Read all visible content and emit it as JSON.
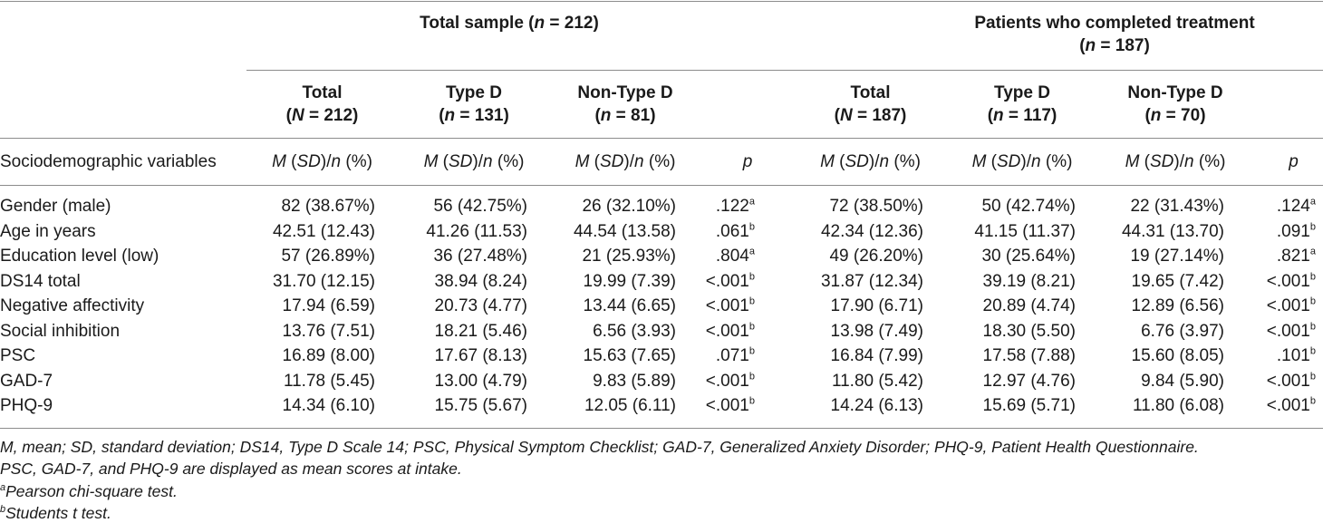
{
  "groups": [
    {
      "title": "Total sample (",
      "n_label": "n",
      "n_value": " = 212)"
    },
    {
      "title": "Patients who completed treatment",
      "n_label": "n",
      "n_value": " = 187)"
    }
  ],
  "columns": [
    {
      "name": "Total",
      "nvar": "N",
      "nval": " = 212)"
    },
    {
      "name": "Type D",
      "nvar": "n",
      "nval": " = 131)"
    },
    {
      "name": "Non-Type D",
      "nvar": "n",
      "nval": " = 81)"
    },
    {
      "name": "Total",
      "nvar": "N",
      "nval": " = 187)"
    },
    {
      "name": "Type D",
      "nvar": "n",
      "nval": " = 117)"
    },
    {
      "name": "Non-Type D",
      "nvar": "n",
      "nval": " = 70)"
    }
  ],
  "subheader": {
    "label": "Sociodemographic variables",
    "stat_m": "M",
    "stat_sd": "SD",
    "stat_n": "n",
    "p": "p"
  },
  "rows": [
    {
      "label": "Gender (male)",
      "v": [
        "82 (38.67%)",
        "56 (42.75%)",
        "26 (32.10%)",
        ".122",
        "72 (38.50%)",
        "50 (42.74%)",
        "22 (31.43%)",
        ".124"
      ],
      "sup": [
        "a",
        "a"
      ]
    },
    {
      "label": "Age in years",
      "v": [
        "42.51 (12.43)",
        "41.26 (11.53)",
        "44.54 (13.58)",
        ".061",
        "42.34 (12.36)",
        "41.15 (11.37)",
        "44.31 (13.70)",
        ".091"
      ],
      "sup": [
        "b",
        "b"
      ]
    },
    {
      "label": "Education level (low)",
      "v": [
        "57 (26.89%)",
        "36 (27.48%)",
        "21 (25.93%)",
        ".804",
        "49 (26.20%)",
        "30 (25.64%)",
        "19 (27.14%)",
        ".821"
      ],
      "sup": [
        "a",
        "a"
      ]
    },
    {
      "label": "DS14 total",
      "v": [
        "31.70 (12.15)",
        "38.94 (8.24)",
        "19.99 (7.39)",
        "<.001",
        "31.87 (12.34)",
        "39.19 (8.21)",
        "19.65 (7.42)",
        "<.001"
      ],
      "sup": [
        "b",
        "b"
      ]
    },
    {
      "label": "Negative affectivity",
      "v": [
        "17.94 (6.59)",
        "20.73 (4.77)",
        "13.44 (6.65)",
        "<.001",
        "17.90 (6.71)",
        "20.89 (4.74)",
        "12.89 (6.56)",
        "<.001"
      ],
      "sup": [
        "b",
        "b"
      ]
    },
    {
      "label": "Social inhibition",
      "v": [
        "13.76 (7.51)",
        "18.21 (5.46)",
        "6.56 (3.93)",
        "<.001",
        "13.98 (7.49)",
        "18.30 (5.50)",
        "6.76 (3.97)",
        "<.001"
      ],
      "sup": [
        "b",
        "b"
      ]
    },
    {
      "label": "PSC",
      "v": [
        "16.89 (8.00)",
        "17.67 (8.13)",
        "15.63 (7.65)",
        ".071",
        "16.84 (7.99)",
        "17.58 (7.88)",
        "15.60 (8.05)",
        ".101"
      ],
      "sup": [
        "b",
        "b"
      ]
    },
    {
      "label": "GAD-7",
      "v": [
        "11.78 (5.45)",
        "13.00 (4.79)",
        "9.83 (5.89)",
        "<.001",
        "11.80 (5.42)",
        "12.97 (4.76)",
        "9.84 (5.90)",
        "<.001"
      ],
      "sup": [
        "b",
        "b"
      ]
    },
    {
      "label": "PHQ-9",
      "v": [
        "14.34 (6.10)",
        "15.75 (5.67)",
        "12.05 (6.11)",
        "<.001",
        "14.24 (6.13)",
        "15.69 (5.71)",
        "11.80 (6.08)",
        "<.001"
      ],
      "sup": [
        "b",
        "b"
      ]
    }
  ],
  "footnotes": {
    "abbrev": "M, mean; SD, standard deviation; DS14, Type D Scale 14; PSC, Physical Symptom Checklist; GAD-7, Generalized Anxiety Disorder; PHQ-9, Patient Health Questionnaire.",
    "display": "PSC, GAD-7, and PHQ-9 are displayed as mean scores at intake.",
    "a_mark": "a",
    "a_text": "Pearson chi-square test.",
    "b_mark": "b",
    "b_text": "Students t test."
  }
}
